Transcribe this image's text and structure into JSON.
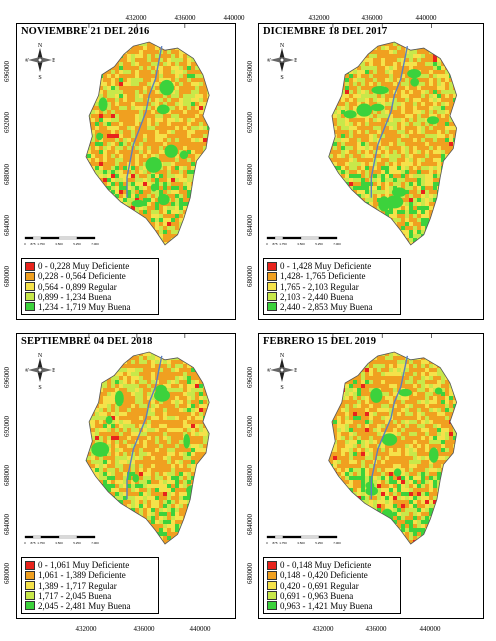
{
  "axes": {
    "x_ticks": [
      "432000",
      "436000",
      "440000"
    ],
    "y_ticks": [
      "696000",
      "692000",
      "688000",
      "684000",
      "680000"
    ]
  },
  "colors": {
    "muy_deficiente": "#e8231c",
    "deficiente": "#f0a020",
    "regular": "#f5e24a",
    "buena": "#c8e84a",
    "muy_buena": "#3cd23c"
  },
  "north_arrow": {
    "n": "N",
    "s": "S",
    "e": "E",
    "w": "W"
  },
  "scale_labels": [
    "0",
    "875",
    "1.750",
    "3.500",
    "5.250",
    "7.000"
  ],
  "panels": [
    {
      "title": "NOVIEMBRE 21 DEL 2016",
      "legend": [
        "0 - 0,228 Muy Deficiente",
        "0,228 - 0,564 Deficiente",
        "0,564 - 0,899  Regular",
        "0,899 - 1,234 Buena",
        "1,234 - 1,719 Muy Buena"
      ]
    },
    {
      "title": "DICIEMBRE 18 DEL 2017",
      "legend": [
        "0 - 1,428 Muy Deficiente",
        "1,428- 1,765 Deficiente",
        "1,765 - 2,103 Regular",
        "2,103 - 2,440 Buena",
        "2,440 - 2,853 Muy Buena"
      ]
    },
    {
      "title": "SEPTIEMBRE 04 DEL 2018",
      "legend": [
        "0 - 1,061 Muy Deficiente",
        "1,061 - 1,389 Deficiente",
        "1,389 - 1,717 Regular",
        "1,717 - 2,045 Buena",
        "2,045 - 2,481 Muy Buena"
      ]
    },
    {
      "title": "FEBRERO 15 DEL 2019",
      "legend": [
        "0 - 0,148 Muy Deficiente",
        "0,148 - 0,420 Deficiente",
        "0,420 - 0,691 Regular",
        "0,691 - 0,963 Buena",
        "0,963 - 1,421 Muy Buena"
      ]
    }
  ]
}
